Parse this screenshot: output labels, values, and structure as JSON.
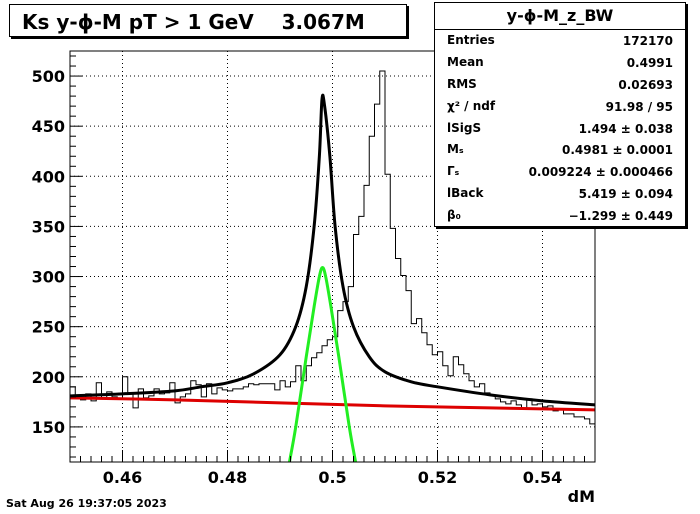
{
  "title": {
    "text": "Ks y-ϕ-M pT > 1 GeV    3.067M"
  },
  "stats": {
    "name": "y-ϕ-M_z_BW",
    "rows": [
      {
        "label": "Entries",
        "value": "172170"
      },
      {
        "label": "Mean",
        "value": "0.4991"
      },
      {
        "label": "RMS",
        "value": "0.02693"
      },
      {
        "label": "χ² / ndf",
        "value": "91.98 / 95"
      },
      {
        "label": "lSigS",
        "value": "1.494 ± 0.038"
      },
      {
        "label": "Mₛ",
        "value": "0.4981 ± 0.0001"
      },
      {
        "label": "Γₛ",
        "value": "0.009224 ± 0.000466"
      },
      {
        "label": "lBack",
        "value": "5.419 ± 0.094"
      },
      {
        "label": "β₀",
        "value": "−1.299 ± 0.449"
      }
    ]
  },
  "footer": {
    "date": "Sat Aug 26 19:37:05 2023"
  },
  "colors": {
    "histogram": "#000000",
    "total_fit": "#000000",
    "signal_fit": "#22ee22",
    "background_fit": "#dd0000",
    "grid": "#000000"
  },
  "chart_data": {
    "type": "histogram",
    "title": "Ks y-ϕ-M pT > 1 GeV    3.067M",
    "xlabel": "dM",
    "ylabel": "",
    "xlim": [
      0.45,
      0.55
    ],
    "ylim": [
      115,
      525
    ],
    "xticks": [
      0.46,
      0.48,
      0.5,
      0.52,
      0.54
    ],
    "xtick_labels": [
      "0.46",
      "0.48",
      "0.5",
      "0.52",
      "0.54"
    ],
    "yticks": [
      150,
      200,
      250,
      300,
      350,
      400,
      450,
      500
    ],
    "ytick_labels": [
      "150",
      "200",
      "250",
      "300",
      "350",
      "400",
      "450",
      "500"
    ],
    "grid": true,
    "bin_width": 0.001,
    "histogram": {
      "x_start": 0.45,
      "values": [
        190,
        180,
        177,
        183,
        176,
        194,
        178,
        185,
        180,
        178,
        200,
        184,
        169,
        188,
        179,
        181,
        188,
        183,
        184,
        194,
        174,
        180,
        183,
        196,
        192,
        180,
        193,
        183,
        189,
        187,
        186,
        188,
        188,
        190,
        193,
        192,
        193,
        193,
        193,
        187,
        196,
        190,
        195,
        211,
        196,
        211,
        219,
        224,
        231,
        237,
        240,
        266,
        275,
        290,
        342,
        360,
        391,
        440,
        472,
        505,
        402,
        348,
        318,
        301,
        286,
        253,
        258,
        244,
        232,
        222,
        225,
        211,
        201,
        220,
        212,
        203,
        196,
        190,
        193,
        184,
        182,
        178,
        175,
        173,
        176,
        172,
        168,
        178,
        172,
        173,
        170,
        171,
        166,
        167,
        163,
        163,
        160,
        160,
        158,
        153
      ],
      "notes_values_per_bin_from_0_45_to_0_55": ""
    },
    "fits": {
      "total": {
        "name": "",
        "points": [
          [
            0.45,
            181
          ],
          [
            0.46,
            183
          ],
          [
            0.47,
            186
          ],
          [
            0.475,
            190
          ],
          [
            0.48,
            194
          ],
          [
            0.485,
            203
          ],
          [
            0.49,
            222
          ],
          [
            0.493,
            250
          ],
          [
            0.495,
            290
          ],
          [
            0.4965,
            350
          ],
          [
            0.4975,
            420
          ],
          [
            0.498,
            477
          ],
          [
            0.4985,
            470
          ],
          [
            0.4995,
            420
          ],
          [
            0.5005,
            350
          ],
          [
            0.502,
            290
          ],
          [
            0.504,
            250
          ],
          [
            0.507,
            220
          ],
          [
            0.51,
            205
          ],
          [
            0.515,
            195
          ],
          [
            0.52,
            190
          ],
          [
            0.53,
            182
          ],
          [
            0.54,
            176
          ],
          [
            0.55,
            172
          ]
        ]
      },
      "signal": {
        "name": "",
        "points": [
          [
            0.4918,
            115
          ],
          [
            0.493,
            150
          ],
          [
            0.495,
            220
          ],
          [
            0.4965,
            270
          ],
          [
            0.4975,
            300
          ],
          [
            0.4981,
            309
          ],
          [
            0.4987,
            300
          ],
          [
            0.4997,
            270
          ],
          [
            0.5012,
            220
          ],
          [
            0.5032,
            150
          ],
          [
            0.5044,
            115
          ]
        ]
      },
      "background": {
        "name": "",
        "points": [
          [
            0.45,
            179
          ],
          [
            0.47,
            177
          ],
          [
            0.49,
            174
          ],
          [
            0.51,
            171
          ],
          [
            0.53,
            169
          ],
          [
            0.55,
            167
          ]
        ]
      }
    }
  }
}
